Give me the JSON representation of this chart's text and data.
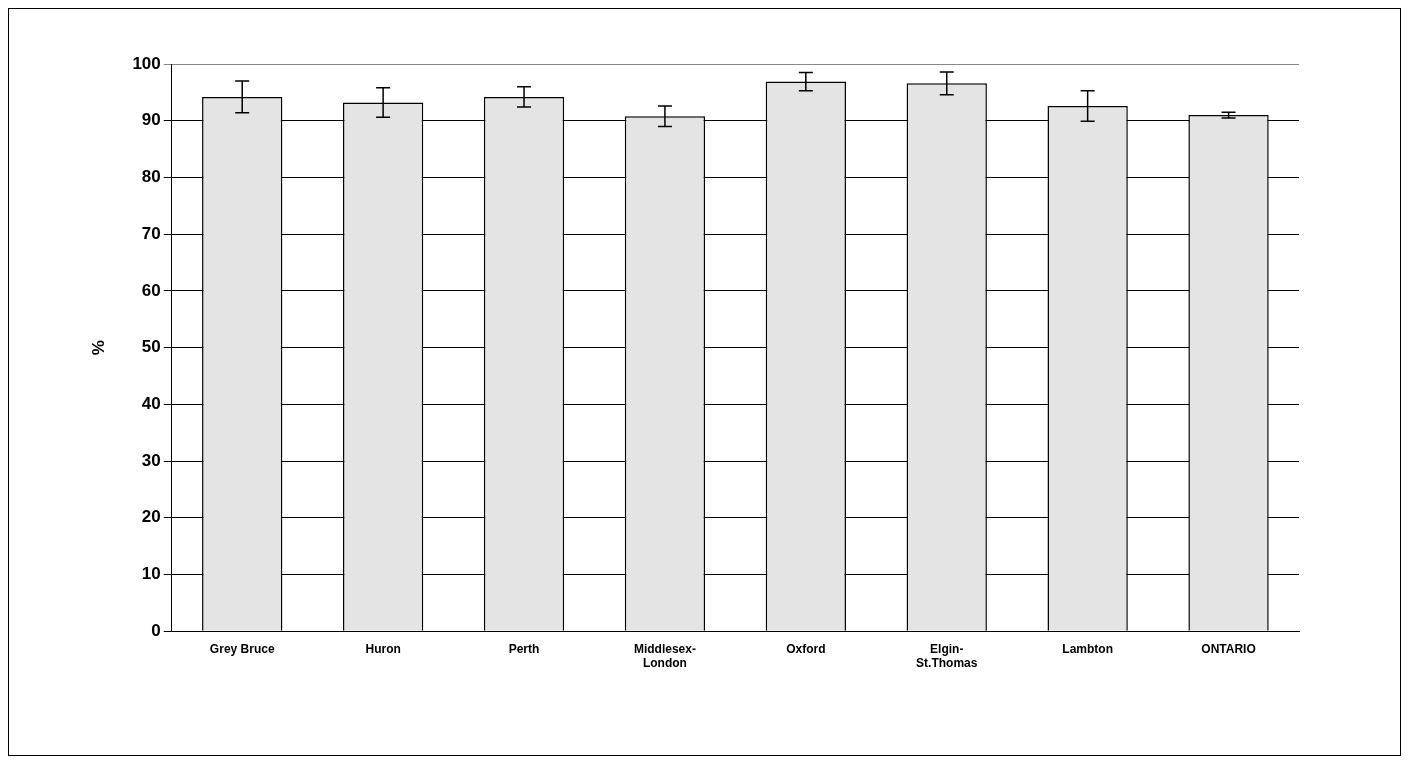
{
  "chart_data": {
    "type": "bar",
    "ylabel": "%",
    "categories": [
      "Grey Bruce",
      "Huron",
      "Perth",
      "Middlesex-\nLondon",
      "Oxford",
      "Elgin-\nSt.Thomas",
      "Lambton",
      "ONTARIO"
    ],
    "values": [
      94.2,
      93.2,
      94.2,
      90.8,
      96.9,
      96.6,
      92.6,
      91.0
    ],
    "errors": [
      2.8,
      2.6,
      1.8,
      1.8,
      1.6,
      2.0,
      2.7,
      0.5
    ],
    "color": "#e4e4e4",
    "ylim": [
      0,
      100
    ],
    "yticks": [
      0,
      10,
      20,
      30,
      40,
      50,
      60,
      70,
      80,
      90,
      100
    ],
    "grid": "y",
    "legend": false
  }
}
